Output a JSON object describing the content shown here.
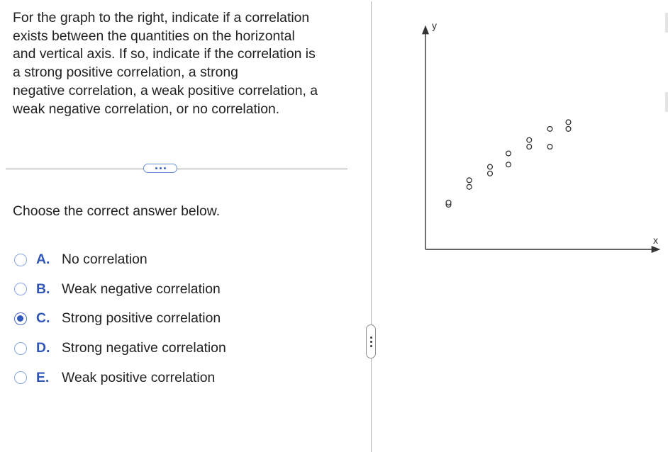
{
  "question": {
    "text": "For the graph to the right, indicate if a correlation\nexists between the quantities on the horizontal\nand vertical axis. If so, indicate if the correlation is\na strong positive correlation, a strong\nnegative correlation, a weak positive correlation, a\nweak negative correlation, or no correlation."
  },
  "prompt": "Choose the correct answer below.",
  "options": [
    {
      "letter": "A.",
      "label": "No correlation",
      "selected": false
    },
    {
      "letter": "B.",
      "label": "Weak negative correlation",
      "selected": false
    },
    {
      "letter": "C.",
      "label": "Strong positive correlation",
      "selected": true
    },
    {
      "letter": "D.",
      "label": "Strong negative correlation",
      "selected": false
    },
    {
      "letter": "E.",
      "label": "Weak positive correlation",
      "selected": false
    }
  ],
  "colors": {
    "accent": "#2f56b8",
    "text": "#222222",
    "divider": "#9a9a9a"
  },
  "icons": {
    "more": "ellipsis-icon",
    "splitter": "vertical-ellipsis-icon"
  },
  "chart_data": {
    "type": "scatter",
    "title": "",
    "xlabel": "x",
    "ylabel": "y",
    "grid": false,
    "xlim": [
      0,
      10
    ],
    "ylim": [
      0,
      10
    ],
    "points": [
      {
        "x": 1.0,
        "y": 2.0
      },
      {
        "x": 1.0,
        "y": 2.1
      },
      {
        "x": 1.9,
        "y": 2.8
      },
      {
        "x": 1.9,
        "y": 3.1
      },
      {
        "x": 2.8,
        "y": 3.4
      },
      {
        "x": 2.8,
        "y": 3.7
      },
      {
        "x": 3.6,
        "y": 3.8
      },
      {
        "x": 3.6,
        "y": 4.3
      },
      {
        "x": 4.5,
        "y": 4.6
      },
      {
        "x": 4.5,
        "y": 4.9
      },
      {
        "x": 5.4,
        "y": 4.6
      },
      {
        "x": 5.4,
        "y": 5.4
      },
      {
        "x": 6.2,
        "y": 5.4
      },
      {
        "x": 6.2,
        "y": 5.7
      }
    ]
  }
}
